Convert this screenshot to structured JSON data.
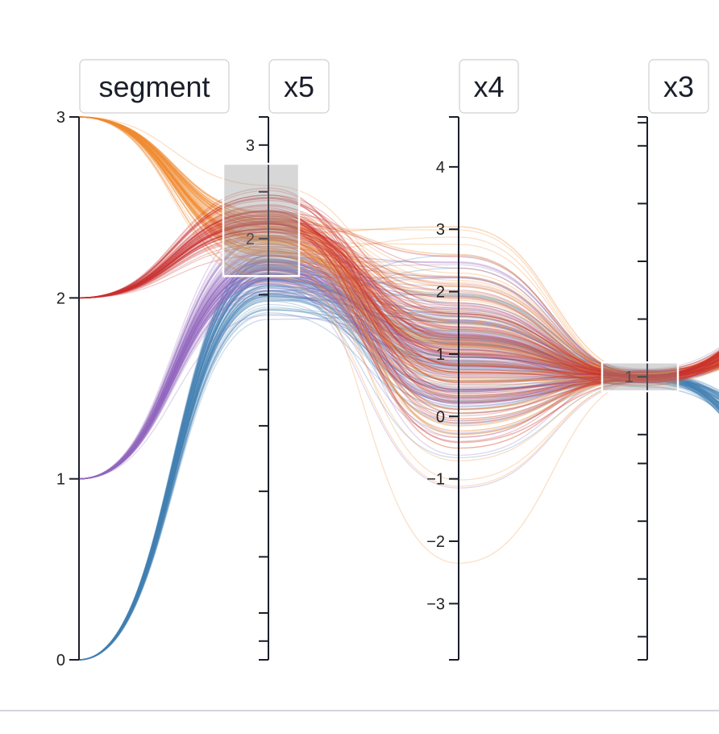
{
  "chart_data": {
    "type": "parallel_coordinates",
    "dimensions": [
      {
        "name": "segment",
        "range": [
          0,
          3
        ],
        "ticks": [
          "0",
          "1",
          "2",
          "3"
        ],
        "tick_values": [
          0,
          1,
          2,
          3
        ],
        "minor_ticks": []
      },
      {
        "name": "x5",
        "range": [
          -2.5,
          3.3
        ],
        "ticks": [
          "2",
          "3"
        ],
        "tick_values": [
          2,
          3
        ],
        "minor_ticks": [
          -2.3,
          -2.0,
          -1.4,
          -0.7,
          0.0,
          0.6,
          1.4,
          2.5,
          3.3
        ],
        "brush": [
          1.6,
          2.8
        ]
      },
      {
        "name": "x4",
        "range": [
          -3.9,
          4.8
        ],
        "ticks": [
          "−3",
          "−2",
          "−1",
          "0",
          "1",
          "2",
          "3",
          "4"
        ],
        "tick_values": [
          -3,
          -2,
          -1,
          0,
          1,
          2,
          3,
          4
        ],
        "minor_ticks": []
      },
      {
        "name": "x3",
        "range": [
          -3.9,
          5.5
        ],
        "ticks": [
          "1"
        ],
        "tick_values": [
          1
        ],
        "minor_ticks": [
          -3.5,
          -2.5,
          -1.5,
          -0.5,
          0,
          2,
          3,
          4,
          5,
          5.4
        ],
        "brush": [
          0.75,
          1.25
        ]
      }
    ],
    "segments": [
      {
        "value": 0,
        "color": "#4682b4",
        "x5_mean": 1.55,
        "x4_spread": 1.9
      },
      {
        "value": 1,
        "color": "#9467bd",
        "x5_mean": 1.7,
        "x4_spread": 1.9
      },
      {
        "value": 2,
        "color": "#c83232",
        "x5_mean": 2.2,
        "x4_spread": 2.5
      },
      {
        "value": 3,
        "color": "#f08c32",
        "x5_mean": 2.0,
        "x4_spread": 2.5
      }
    ]
  }
}
